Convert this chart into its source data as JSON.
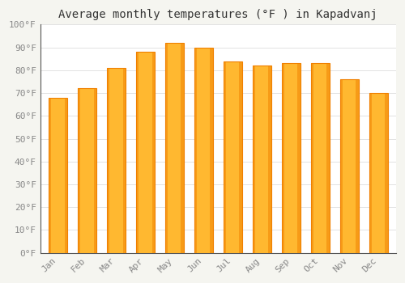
{
  "title": "Average monthly temperatures (°F ) in Kapadvanj",
  "months": [
    "Jan",
    "Feb",
    "Mar",
    "Apr",
    "May",
    "Jun",
    "Jul",
    "Aug",
    "Sep",
    "Oct",
    "Nov",
    "Dec"
  ],
  "values": [
    68,
    72,
    81,
    88,
    92,
    90,
    84,
    82,
    83,
    83,
    76,
    70
  ],
  "bar_color_center": "#FFB830",
  "bar_color_edge": "#F08000",
  "background_color": "#F5F5F0",
  "plot_bg_color": "#FFFFFF",
  "ylim": [
    0,
    100
  ],
  "yticks": [
    0,
    10,
    20,
    30,
    40,
    50,
    60,
    70,
    80,
    90,
    100
  ],
  "title_fontsize": 10,
  "tick_fontsize": 8,
  "grid_color": "#dddddd",
  "tick_color": "#888888",
  "bar_width": 0.65
}
